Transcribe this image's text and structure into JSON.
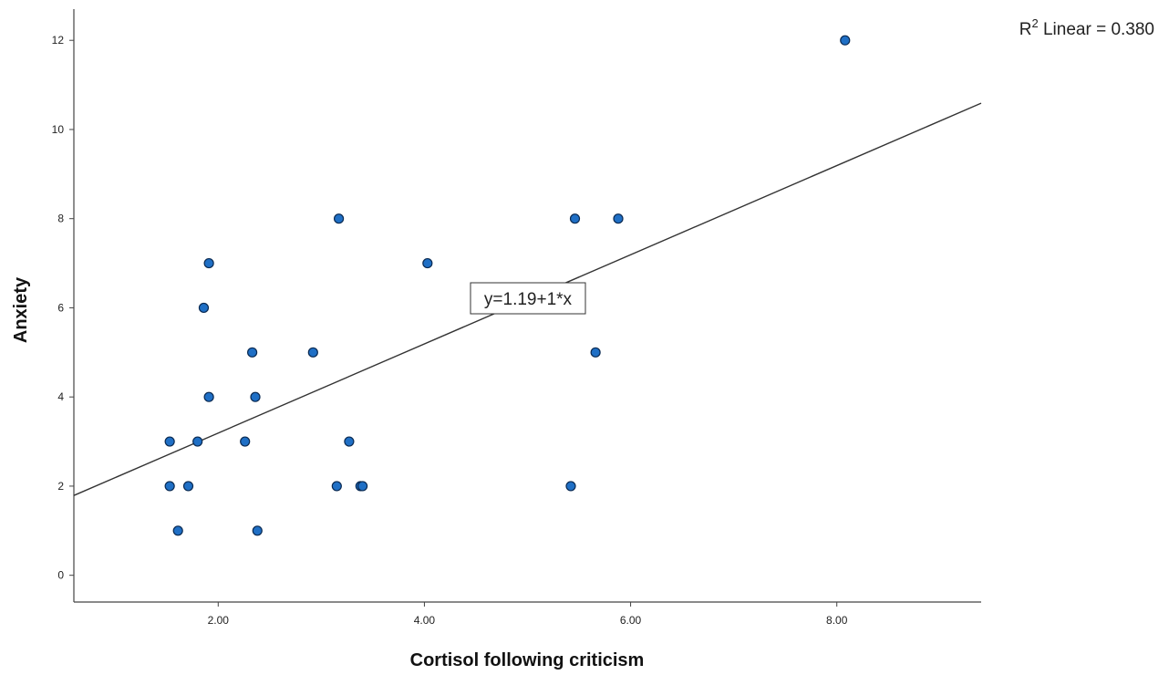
{
  "chart_data": {
    "type": "scatter",
    "xlabel": "Cortisol following criticism",
    "ylabel": "Anxiety",
    "xlim": [
      0.6,
      9.4
    ],
    "ylim": [
      -0.6,
      12.7
    ],
    "x_ticks": [
      "2.00",
      "4.00",
      "6.00",
      "8.00"
    ],
    "x_tick_values": [
      2,
      4,
      6,
      8
    ],
    "y_ticks": [
      "0",
      "2",
      "4",
      "6",
      "8",
      "10",
      "12"
    ],
    "y_tick_values": [
      0,
      2,
      4,
      6,
      8,
      10,
      12
    ],
    "grid": false,
    "point_color": "#1f6fc5",
    "point_edge_color": "#0a2a52",
    "points": [
      {
        "x": 8.08,
        "y": 12
      },
      {
        "x": 1.91,
        "y": 7
      },
      {
        "x": 1.86,
        "y": 6
      },
      {
        "x": 3.17,
        "y": 8
      },
      {
        "x": 5.46,
        "y": 8
      },
      {
        "x": 5.88,
        "y": 8
      },
      {
        "x": 4.03,
        "y": 7
      },
      {
        "x": 2.33,
        "y": 5
      },
      {
        "x": 2.92,
        "y": 5
      },
      {
        "x": 5.66,
        "y": 5
      },
      {
        "x": 1.91,
        "y": 4
      },
      {
        "x": 2.36,
        "y": 4
      },
      {
        "x": 1.53,
        "y": 3
      },
      {
        "x": 1.8,
        "y": 3
      },
      {
        "x": 2.26,
        "y": 3
      },
      {
        "x": 3.27,
        "y": 3
      },
      {
        "x": 1.53,
        "y": 2
      },
      {
        "x": 1.71,
        "y": 2
      },
      {
        "x": 3.15,
        "y": 2
      },
      {
        "x": 3.38,
        "y": 2
      },
      {
        "x": 3.4,
        "y": 2
      },
      {
        "x": 5.42,
        "y": 2
      },
      {
        "x": 1.61,
        "y": 1
      },
      {
        "x": 2.38,
        "y": 1
      }
    ],
    "fit_line": {
      "intercept": 1.19,
      "slope": 1,
      "color": "#333333"
    },
    "equation_label": "y=1.19+1*x",
    "r2_prefix": "R",
    "r2_superscript": "2",
    "r2_text": " Linear = 0.380"
  }
}
